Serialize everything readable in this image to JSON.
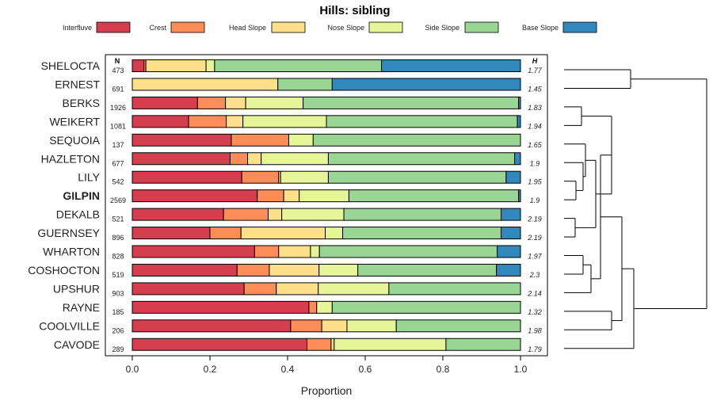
{
  "chart_data": {
    "type": "bar",
    "orientation": "horizontal",
    "stacked": true,
    "title": "Hills: sibling",
    "xlabel": "Proportion",
    "xlim": [
      0,
      1
    ],
    "xticks": [
      0,
      0.2,
      0.4,
      0.6,
      0.8,
      1
    ],
    "xtick_labels": [
      "0.0",
      "0.2",
      "0.4",
      "0.6",
      "0.8",
      "1.0"
    ],
    "n_header": "N",
    "h_header": "H",
    "highlight": "GILPIN",
    "legend": [
      {
        "name": "Interfluve",
        "color": "#d53e4f"
      },
      {
        "name": "Crest",
        "color": "#fc8d59"
      },
      {
        "name": "Head Slope",
        "color": "#fee08b"
      },
      {
        "name": "Nose Slope",
        "color": "#e6f598"
      },
      {
        "name": "Side Slope",
        "color": "#99d594"
      },
      {
        "name": "Base Slope",
        "color": "#3288bd"
      }
    ],
    "rows": [
      {
        "label": "SHELOCTA",
        "n": "473",
        "h": "1.77",
        "values": [
          0.03,
          0.005,
          0.155,
          0.022,
          0.43,
          0.358
        ]
      },
      {
        "label": "ERNEST",
        "n": "691",
        "h": "1.45",
        "values": [
          0.0,
          0.0,
          0.375,
          0.0,
          0.14,
          0.485
        ]
      },
      {
        "label": "BERKS",
        "n": "1926",
        "h": "1.83",
        "values": [
          0.168,
          0.072,
          0.052,
          0.148,
          0.555,
          0.005
        ]
      },
      {
        "label": "WEIKERT",
        "n": "1081",
        "h": "1.94",
        "values": [
          0.145,
          0.097,
          0.043,
          0.215,
          0.492,
          0.008
        ]
      },
      {
        "label": "SEQUOIA",
        "n": "137",
        "h": "1.65",
        "values": [
          0.255,
          0.148,
          0.0,
          0.063,
          0.534,
          0.0
        ]
      },
      {
        "label": "HAZLETON",
        "n": "677",
        "h": "1.9",
        "values": [
          0.252,
          0.045,
          0.035,
          0.173,
          0.48,
          0.015
        ]
      },
      {
        "label": "LILY",
        "n": "542",
        "h": "1.95",
        "values": [
          0.282,
          0.095,
          0.005,
          0.123,
          0.458,
          0.037
        ]
      },
      {
        "label": "GILPIN",
        "n": "2569",
        "h": "1.9",
        "values": [
          0.322,
          0.068,
          0.04,
          0.128,
          0.437,
          0.005
        ]
      },
      {
        "label": "DEKALB",
        "n": "521",
        "h": "2.19",
        "values": [
          0.235,
          0.115,
          0.035,
          0.16,
          0.405,
          0.05
        ]
      },
      {
        "label": "GUERNSEY",
        "n": "896",
        "h": "2.19",
        "values": [
          0.2,
          0.08,
          0.217,
          0.045,
          0.408,
          0.05
        ]
      },
      {
        "label": "WHARTON",
        "n": "828",
        "h": "1.97",
        "values": [
          0.315,
          0.062,
          0.082,
          0.023,
          0.458,
          0.06
        ]
      },
      {
        "label": "COSHOCTON",
        "n": "519",
        "h": "2.3",
        "values": [
          0.27,
          0.083,
          0.128,
          0.1,
          0.357,
          0.062
        ]
      },
      {
        "label": "UPSHUR",
        "n": "903",
        "h": "2.14",
        "values": [
          0.288,
          0.083,
          0.108,
          0.182,
          0.339,
          0.0
        ]
      },
      {
        "label": "RAYNE",
        "n": "185",
        "h": "1.32",
        "values": [
          0.455,
          0.02,
          0.0,
          0.04,
          0.485,
          0.0
        ]
      },
      {
        "label": "COOLVILLE",
        "n": "206",
        "h": "1.98",
        "values": [
          0.408,
          0.08,
          0.065,
          0.127,
          0.32,
          0.0
        ]
      },
      {
        "label": "CAVODE",
        "n": "289",
        "h": "1.79",
        "values": [
          0.45,
          0.062,
          0.008,
          0.288,
          0.192,
          0.0
        ]
      }
    ]
  }
}
